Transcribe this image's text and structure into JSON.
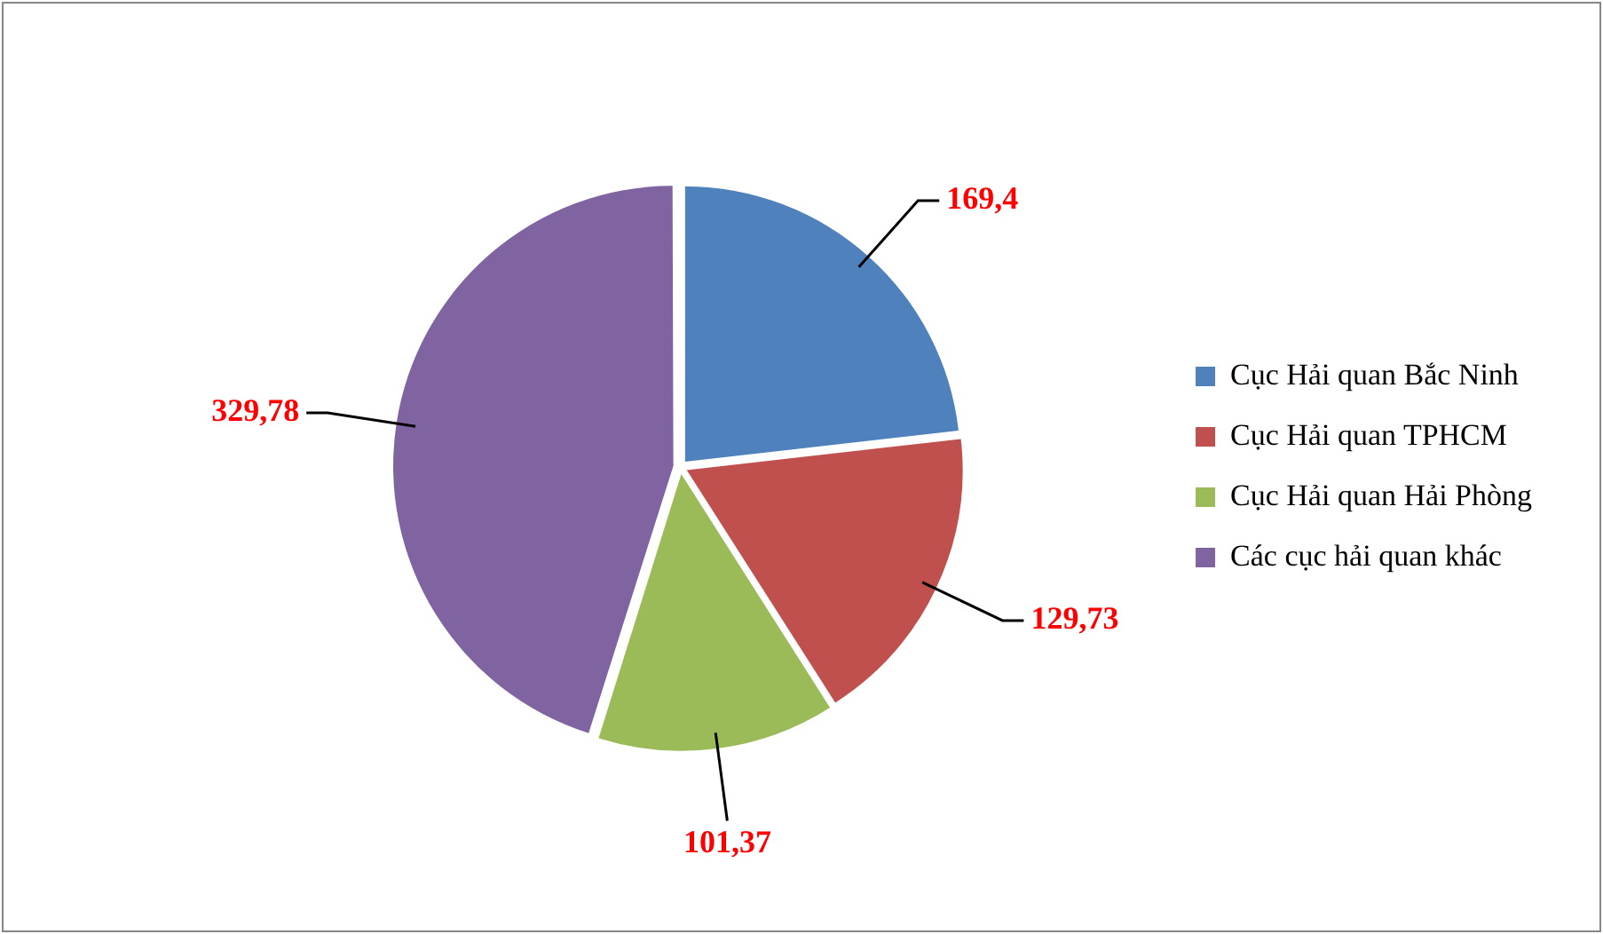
{
  "chart_data": {
    "type": "pie",
    "categories": [
      "Cục Hải quan Bắc Ninh",
      "Cục Hải quan TPHCM",
      "Cục Hải quan Hải Phòng",
      "Các cục hải quan khác"
    ],
    "values": [
      169.4,
      129.73,
      101.37,
      329.78
    ],
    "colors": [
      "#4f81bd",
      "#c0504d",
      "#9bbb59",
      "#8064a2"
    ],
    "value_labels": [
      "169,4",
      "129,73",
      "101,37",
      "329,78"
    ],
    "legend": "right"
  }
}
